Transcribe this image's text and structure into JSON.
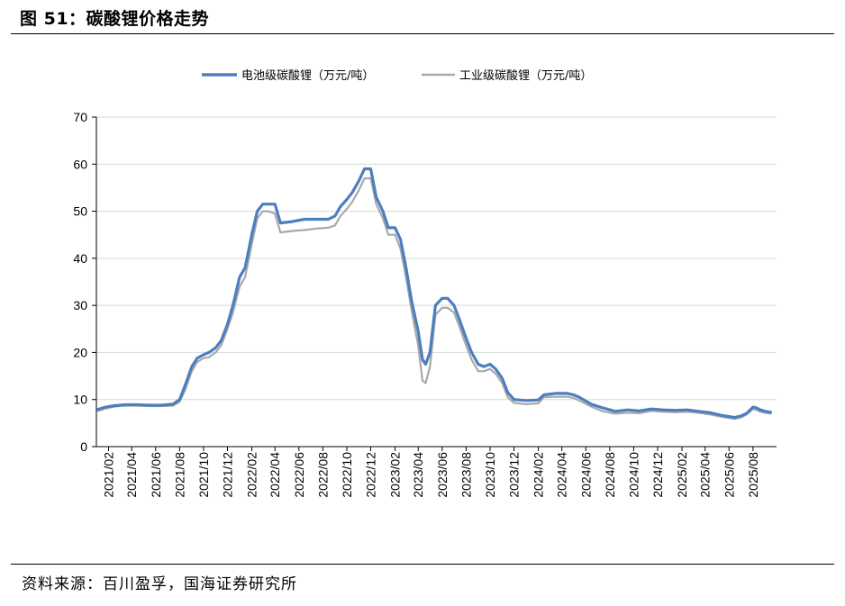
{
  "title": "图 51：碳酸锂价格走势",
  "source": "资料来源：百川盈孚，国海证券研究所",
  "colors": {
    "battery": "#4d7ebf",
    "industrial": "#a9a9a9",
    "grid": "#d9d9d9",
    "axis": "#000000"
  },
  "chart_data": {
    "type": "line",
    "title": "",
    "xlabel": "",
    "ylabel": "",
    "ylim": [
      0,
      70
    ],
    "yticks": [
      0,
      10,
      20,
      30,
      40,
      50,
      60,
      70
    ],
    "xticks": [
      "2021/02",
      "2021/04",
      "2021/06",
      "2021/08",
      "2021/10",
      "2021/12",
      "2022/02",
      "2022/04",
      "2022/06",
      "2022/08",
      "2022/10",
      "2022/12",
      "2023/02",
      "2023/04",
      "2023/06",
      "2023/08",
      "2023/10",
      "2023/12",
      "2024/02",
      "2024/04",
      "2024/06",
      "2024/08",
      "2024/10",
      "2024/12",
      "2025/02",
      "2025/04",
      "2025/06",
      "2025/08"
    ],
    "grid": "horizontal",
    "legend_position": "top-center",
    "series": [
      {
        "name": "电池级碳酸锂（万元/吨）",
        "color": "#4d7ebf",
        "x": [
          "2021/01/05",
          "2021/01/20",
          "2021/02/15",
          "2021/03/15",
          "2021/04/15",
          "2021/05/15",
          "2021/06/15",
          "2021/07/15",
          "2021/08/01",
          "2021/08/15",
          "2021/09/01",
          "2021/09/15",
          "2021/10/01",
          "2021/10/15",
          "2021/11/01",
          "2021/11/15",
          "2021/12/01",
          "2021/12/15",
          "2022/01/01",
          "2022/01/15",
          "2022/02/01",
          "2022/02/15",
          "2022/03/01",
          "2022/03/15",
          "2022/04/01",
          "2022/04/15",
          "2022/05/15",
          "2022/06/15",
          "2022/07/15",
          "2022/08/15",
          "2022/09/01",
          "2022/09/15",
          "2022/10/01",
          "2022/10/15",
          "2022/11/01",
          "2022/11/15",
          "2022/12/01",
          "2022/12/15",
          "2023/01/01",
          "2023/01/15",
          "2023/02/01",
          "2023/02/15",
          "2023/03/01",
          "2023/03/15",
          "2023/04/01",
          "2023/04/12",
          "2023/04/20",
          "2023/05/01",
          "2023/05/15",
          "2023/06/01",
          "2023/06/15",
          "2023/07/01",
          "2023/07/15",
          "2023/08/01",
          "2023/08/15",
          "2023/09/01",
          "2023/09/15",
          "2023/10/01",
          "2023/10/15",
          "2023/11/01",
          "2023/11/15",
          "2023/12/01",
          "2024/01/01",
          "2024/02/01",
          "2024/02/15",
          "2024/03/15",
          "2024/04/15",
          "2024/05/01",
          "2024/05/15",
          "2024/06/15",
          "2024/07/15",
          "2024/08/15",
          "2024/09/15",
          "2024/10/15",
          "2024/11/15",
          "2024/12/15",
          "2025/01/15",
          "2025/02/15",
          "2025/03/15",
          "2025/04/15",
          "2025/05/15",
          "2025/06/15",
          "2025/07/01",
          "2025/07/15",
          "2025/08/01",
          "2025/08/10",
          "2025/08/20",
          "2025/09/01",
          "2025/09/15"
        ],
        "y": [
          7.9,
          8.3,
          8.7,
          8.9,
          8.9,
          8.8,
          8.8,
          9.0,
          10.0,
          13.0,
          17.0,
          18.8,
          19.5,
          20.0,
          21.0,
          22.5,
          26.0,
          30.0,
          36.0,
          38.0,
          45.0,
          50.0,
          51.5,
          51.5,
          51.5,
          47.5,
          47.8,
          48.3,
          48.3,
          48.3,
          49.0,
          51.0,
          52.5,
          54.0,
          56.5,
          59.0,
          59.0,
          53.0,
          50.0,
          46.5,
          46.5,
          44.0,
          38.0,
          31.0,
          24.5,
          18.5,
          17.5,
          20.0,
          30.0,
          31.5,
          31.5,
          30.0,
          27.0,
          23.0,
          20.0,
          17.5,
          17.0,
          17.5,
          16.5,
          14.5,
          11.5,
          10.0,
          9.8,
          9.9,
          11.0,
          11.3,
          11.3,
          11.0,
          10.5,
          9.0,
          8.2,
          7.5,
          7.8,
          7.6,
          8.0,
          7.8,
          7.7,
          7.8,
          7.5,
          7.2,
          6.6,
          6.2,
          6.5,
          7.0,
          8.4,
          8.2,
          7.8,
          7.5,
          7.3
        ]
      },
      {
        "name": "工业级碳酸锂（万元/吨）",
        "color": "#a9a9a9",
        "x": [
          "2021/01/05",
          "2021/01/20",
          "2021/02/15",
          "2021/03/15",
          "2021/04/15",
          "2021/05/15",
          "2021/06/15",
          "2021/07/15",
          "2021/08/01",
          "2021/08/15",
          "2021/09/01",
          "2021/09/15",
          "2021/10/01",
          "2021/10/15",
          "2021/11/01",
          "2021/11/15",
          "2021/12/01",
          "2021/12/15",
          "2022/01/01",
          "2022/01/15",
          "2022/02/01",
          "2022/02/15",
          "2022/03/01",
          "2022/03/15",
          "2022/04/01",
          "2022/04/15",
          "2022/05/15",
          "2022/06/15",
          "2022/07/15",
          "2022/08/15",
          "2022/09/01",
          "2022/09/15",
          "2022/10/01",
          "2022/10/15",
          "2022/11/01",
          "2022/11/15",
          "2022/12/01",
          "2022/12/15",
          "2023/01/01",
          "2023/01/15",
          "2023/02/01",
          "2023/02/15",
          "2023/03/01",
          "2023/03/15",
          "2023/04/01",
          "2023/04/12",
          "2023/04/20",
          "2023/05/01",
          "2023/05/15",
          "2023/06/01",
          "2023/06/15",
          "2023/07/01",
          "2023/07/15",
          "2023/08/01",
          "2023/08/15",
          "2023/09/01",
          "2023/09/15",
          "2023/10/01",
          "2023/10/15",
          "2023/11/01",
          "2023/11/15",
          "2023/12/01",
          "2024/01/01",
          "2024/02/01",
          "2024/02/15",
          "2024/03/15",
          "2024/04/15",
          "2024/05/01",
          "2024/05/15",
          "2024/06/15",
          "2024/07/15",
          "2024/08/15",
          "2024/09/15",
          "2024/10/15",
          "2024/11/15",
          "2024/12/15",
          "2025/01/15",
          "2025/02/15",
          "2025/03/15",
          "2025/04/15",
          "2025/05/15",
          "2025/06/15",
          "2025/07/01",
          "2025/07/15",
          "2025/08/01",
          "2025/08/10",
          "2025/08/20",
          "2025/09/01",
          "2025/09/15"
        ],
        "y": [
          7.6,
          8.0,
          8.5,
          8.7,
          8.7,
          8.6,
          8.6,
          8.7,
          9.5,
          12.0,
          16.0,
          18.0,
          18.8,
          19.0,
          20.0,
          21.5,
          25.0,
          28.5,
          34.0,
          36.0,
          43.0,
          48.5,
          50.0,
          50.0,
          49.5,
          45.5,
          45.8,
          46.0,
          46.3,
          46.5,
          47.0,
          49.0,
          50.5,
          52.0,
          54.5,
          57.0,
          57.0,
          51.5,
          48.5,
          45.0,
          45.0,
          42.0,
          36.0,
          29.0,
          21.5,
          14.0,
          13.5,
          17.0,
          28.0,
          29.5,
          29.5,
          28.5,
          25.5,
          21.5,
          18.5,
          16.0,
          16.0,
          16.5,
          15.5,
          13.5,
          10.5,
          9.3,
          9.0,
          9.2,
          10.5,
          10.6,
          10.6,
          10.3,
          9.8,
          8.5,
          7.5,
          7.0,
          7.2,
          7.1,
          7.6,
          7.4,
          7.3,
          7.4,
          7.2,
          6.8,
          6.3,
          5.9,
          6.2,
          6.8,
          8.0,
          7.8,
          7.4,
          7.2,
          7.0
        ]
      }
    ]
  }
}
